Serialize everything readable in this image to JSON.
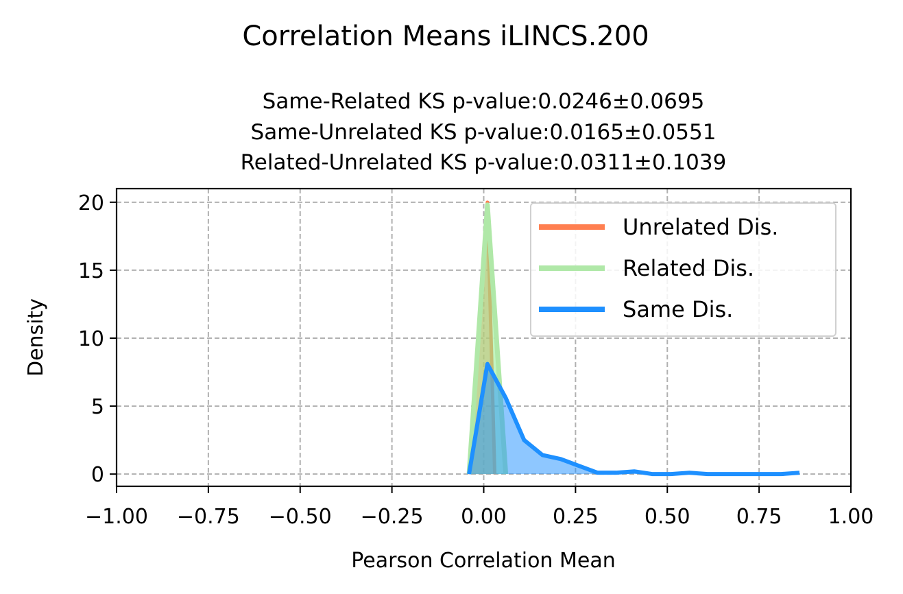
{
  "figure": {
    "suptitle": "Correlation Means iLINCS.200"
  },
  "chart_data": {
    "type": "line",
    "title_lines": [
      "Same-Related KS p-value:0.0246±0.0695",
      "Same-Unrelated KS p-value:0.0165±0.0551",
      "Related-Unrelated KS p-value:0.0311±0.1039"
    ],
    "xlabel": "Pearson Correlation Mean",
    "ylabel": "Density",
    "xlim": [
      -1.0,
      1.0
    ],
    "ylim": [
      -0.9,
      21.0
    ],
    "xticks": [
      -1.0,
      -0.75,
      -0.5,
      -0.25,
      0.0,
      0.25,
      0.5,
      0.75,
      1.0
    ],
    "xtick_labels": [
      "−1.00",
      "−0.75",
      "−0.50",
      "−0.25",
      "0.00",
      "0.25",
      "0.50",
      "0.75",
      "1.00"
    ],
    "yticks": [
      0,
      5,
      10,
      15,
      20
    ],
    "ytick_labels": [
      "0",
      "5",
      "10",
      "15",
      "20"
    ],
    "grid": true,
    "legend_position": "upper-right",
    "series": [
      {
        "name": "Unrelated Dis.",
        "color": "#ff7f50",
        "fill_color": "#ff7f50",
        "fill_opacity": 0.55,
        "line_width": 5,
        "x": [
          -0.04,
          0.01,
          0.03
        ],
        "y": [
          0,
          20,
          0
        ]
      },
      {
        "name": "Related Dis.",
        "color": "#b0e8a8",
        "fill_color": "#90ee90",
        "fill_opacity": 0.55,
        "line_width": 7,
        "x": [
          -0.04,
          0.01,
          0.06
        ],
        "y": [
          0,
          19.8,
          0
        ]
      },
      {
        "name": "Same Dis.",
        "color": "#1e90ff",
        "fill_color": "#1e90ff",
        "fill_opacity": 0.5,
        "line_width": 6,
        "x": [
          -0.04,
          0.01,
          0.06,
          0.11,
          0.16,
          0.21,
          0.26,
          0.31,
          0.36,
          0.41,
          0.46,
          0.51,
          0.56,
          0.61,
          0.66,
          0.71,
          0.76,
          0.81,
          0.86
        ],
        "y": [
          0,
          8.1,
          5.6,
          2.5,
          1.4,
          1.1,
          0.6,
          0.1,
          0.1,
          0.2,
          0.0,
          0.0,
          0.1,
          0.0,
          0.0,
          0.0,
          0.0,
          0.0,
          0.1
        ]
      }
    ]
  }
}
